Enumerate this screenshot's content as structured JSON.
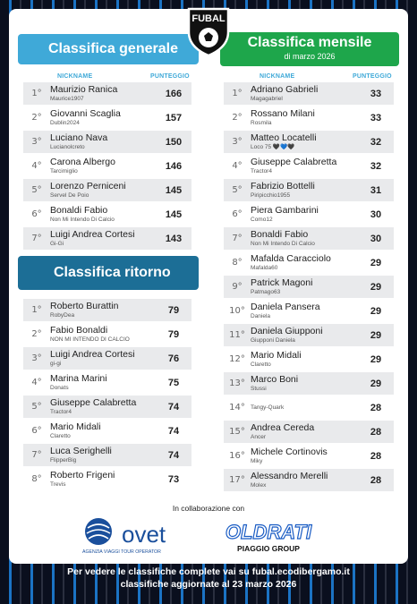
{
  "logo": {
    "text": "FUBAL"
  },
  "generale": {
    "title": "Classifica generale",
    "col_nickname": "NICKNAME",
    "col_punteggio": "PUNTEGGIO",
    "rows": [
      {
        "rank": "1°",
        "name": "Maurizio Ranica",
        "user": "Maurice1907",
        "pts": "166"
      },
      {
        "rank": "2°",
        "name": "Giovanni Scaglia",
        "user": "Dublin2024",
        "pts": "157"
      },
      {
        "rank": "3°",
        "name": "Luciano Nava",
        "user": "Lucianolcreto",
        "pts": "150"
      },
      {
        "rank": "4°",
        "name": "Carona Albergo",
        "user": "Tarcimiglio",
        "pts": "146"
      },
      {
        "rank": "5°",
        "name": "Lorenzo Perniceni",
        "user": "Servel De Poio",
        "pts": "145"
      },
      {
        "rank": "6°",
        "name": "Bonaldi Fabio",
        "user": "Non Mi Intendo Di Calcio",
        "pts": "145"
      },
      {
        "rank": "7°",
        "name": "Luigi Andrea Cortesi",
        "user": "Gi-Gi",
        "pts": "143"
      }
    ]
  },
  "ritorno": {
    "title": "Classifica ritorno",
    "rows": [
      {
        "rank": "1°",
        "name": "Roberto Burattin",
        "user": "RobyDea",
        "pts": "79"
      },
      {
        "rank": "2°",
        "name": "Fabio Bonaldi",
        "user": "NON MI INTENDO DI CALCIO",
        "pts": "79"
      },
      {
        "rank": "3°",
        "name": "Luigi Andrea Cortesi",
        "user": "gi-gi",
        "pts": "76"
      },
      {
        "rank": "4°",
        "name": "Marina Marini",
        "user": "Donats",
        "pts": "75"
      },
      {
        "rank": "5°",
        "name": "Giuseppe Calabretta",
        "user": "Tractor4",
        "pts": "74"
      },
      {
        "rank": "6°",
        "name": "Mario Midali",
        "user": "Claretto",
        "pts": "74"
      },
      {
        "rank": "7°",
        "name": "Luca Serighelli",
        "user": "FlipperBig",
        "pts": "74"
      },
      {
        "rank": "8°",
        "name": "Roberto Frigeni",
        "user": "Trevis",
        "pts": "73"
      }
    ]
  },
  "mensile": {
    "title": "Classifica mensile",
    "subtitle": "di marzo 2026",
    "col_nickname": "NICKNAME",
    "col_punteggio": "PUNTEGGIO",
    "rows": [
      {
        "rank": "1°",
        "name": "Adriano Gabrieli",
        "user": "Magagabriel",
        "pts": "33"
      },
      {
        "rank": "2°",
        "name": "Rossano Milani",
        "user": "Rosmila",
        "pts": "33"
      },
      {
        "rank": "3°",
        "name": "Matteo Locatelli",
        "user": "Loco 75 🖤💙🖤",
        "pts": "32"
      },
      {
        "rank": "4°",
        "name": "Giuseppe Calabretta",
        "user": "Tractor4",
        "pts": "32"
      },
      {
        "rank": "5°",
        "name": "Fabrizio Bottelli",
        "user": "Piripicchio1955",
        "pts": "31"
      },
      {
        "rank": "6°",
        "name": "Piera Gambarini",
        "user": "Como12",
        "pts": "30"
      },
      {
        "rank": "7°",
        "name": "Bonaldi Fabio",
        "user": "Non Mi Intendo Di Calcio",
        "pts": "30"
      },
      {
        "rank": "8°",
        "name": "Mafalda Caracciolo",
        "user": "Mafalda60",
        "pts": "29"
      },
      {
        "rank": "9°",
        "name": "Patrick Magoni",
        "user": "Patmago63",
        "pts": "29"
      },
      {
        "rank": "10°",
        "name": "Daniela Pansera",
        "user": "Daniela",
        "pts": "29"
      },
      {
        "rank": "11°",
        "name": "Daniela Giupponi",
        "user": "Giupponi Daniela",
        "pts": "29"
      },
      {
        "rank": "12°",
        "name": "Mario Midali",
        "user": "Claretto",
        "pts": "29"
      },
      {
        "rank": "13°",
        "name": "Marco Boni",
        "user": "Stussi",
        "pts": "29"
      },
      {
        "rank": "14°",
        "name": "",
        "user": "Tangy-Quark",
        "pts": "28"
      },
      {
        "rank": "15°",
        "name": "Andrea Cereda",
        "user": "Ancer",
        "pts": "28"
      },
      {
        "rank": "16°",
        "name": "Michele Cortinovis",
        "user": "Miky",
        "pts": "28"
      },
      {
        "rank": "17°",
        "name": "Alessandro Merelli",
        "user": "Molex",
        "pts": "28"
      }
    ]
  },
  "collab": "In collaborazione con",
  "sponsors": {
    "ovet_name": "ovet",
    "ovet_tag": "AGENZIA VIAGGI TOUR OPERATOR",
    "oldrati_name": "OLDRATI",
    "oldrati_tag": "PIAGGIO GROUP"
  },
  "footer": {
    "line1": "Per vedere le classifiche complete vai su fubal.ecodibergamo.it",
    "line2": "classifiche aggiornate al 23 marzo 2026"
  },
  "colors": {
    "generale": "#3fa9d8",
    "mensile": "#1ea64b",
    "ritorno": "#1c6e96"
  }
}
